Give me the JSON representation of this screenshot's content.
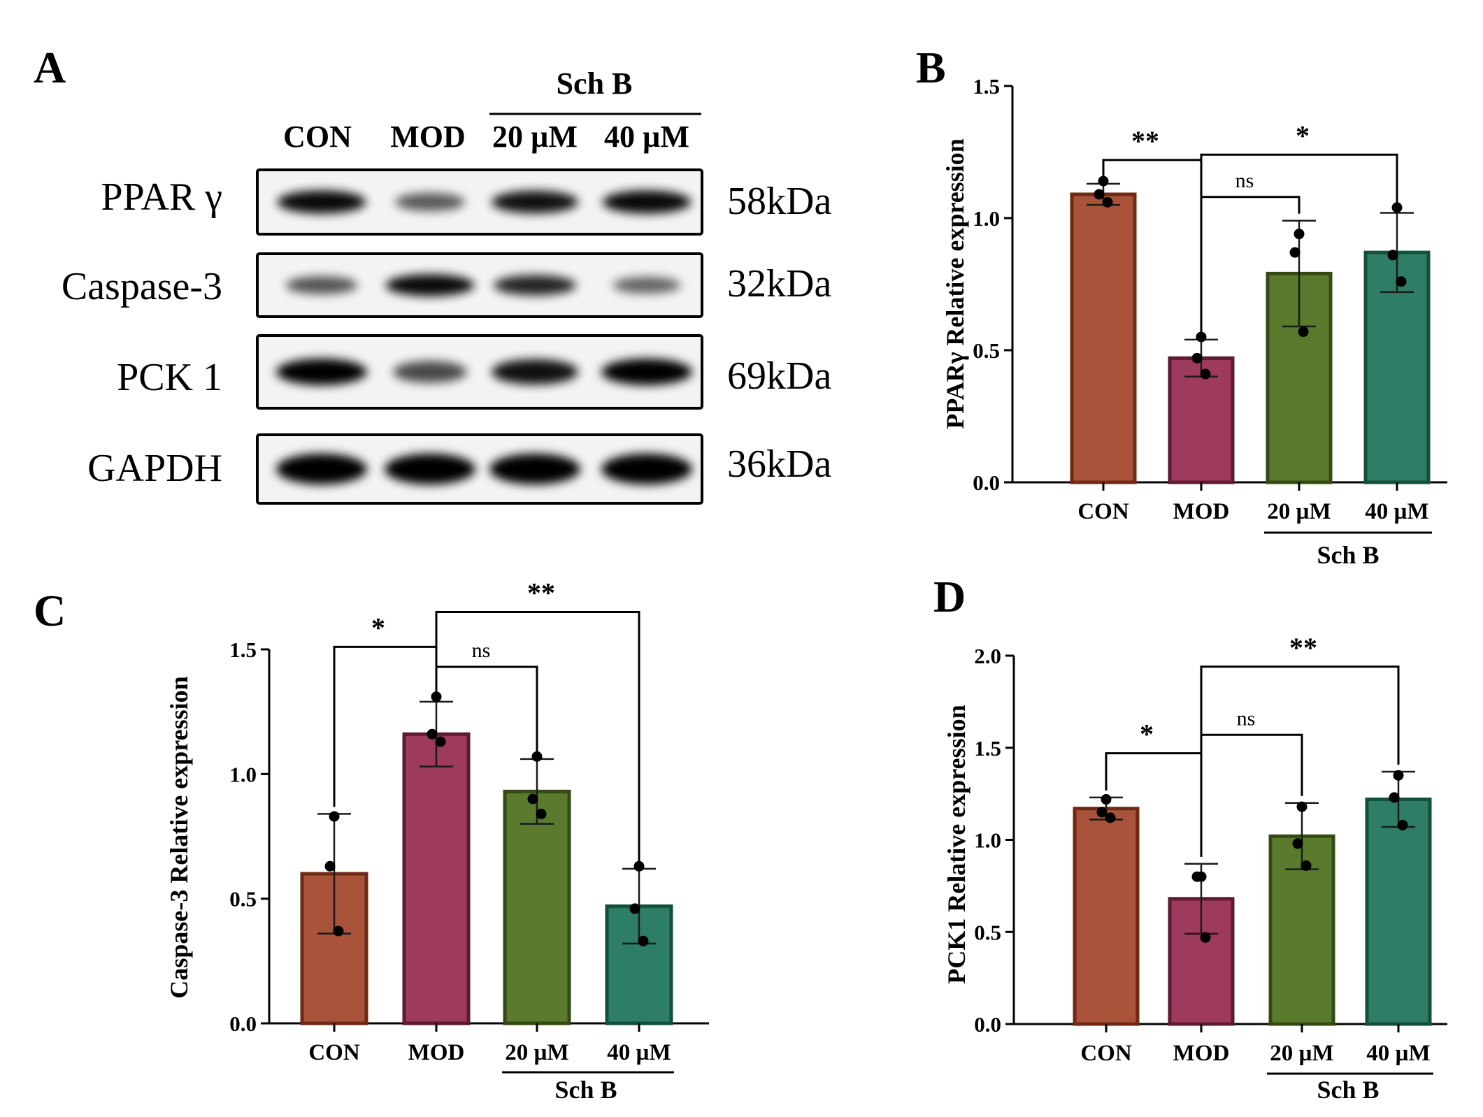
{
  "panels": {
    "A": {
      "letter": "A",
      "group_label": "Sch B",
      "lanes": [
        "CON",
        "MOD",
        "20 µM",
        "40 µM"
      ],
      "blots": [
        {
          "protein": "PPAR γ",
          "size": "58kDa",
          "intensity": [
            0.95,
            0.5,
            0.9,
            0.95
          ]
        },
        {
          "protein": "Caspase-3",
          "size": "32kDa",
          "intensity": [
            0.55,
            0.95,
            0.8,
            0.45
          ]
        },
        {
          "protein": "PCK 1",
          "size": "69kDa",
          "intensity": [
            1.0,
            0.6,
            0.9,
            1.0
          ]
        },
        {
          "protein": "GAPDH",
          "size": "36kDa",
          "intensity": [
            1.0,
            1.0,
            1.0,
            1.0
          ]
        }
      ]
    },
    "B": {
      "letter": "B"
    },
    "C": {
      "letter": "C"
    },
    "D": {
      "letter": "D"
    }
  },
  "colors": {
    "CON": "#a8533a",
    "MOD": "#9e3a5e",
    "20uM": "#5a7a2e",
    "40uM": "#2e7d66",
    "CON_edge": "#6e2a14",
    "MOD_edge": "#5e1a34",
    "20uM_edge": "#344a12",
    "40uM_edge": "#12503e"
  },
  "chart_data": [
    {
      "panel": "B",
      "type": "bar",
      "categories": [
        "CON",
        "MOD",
        "20 µM",
        "40 µM"
      ],
      "group_label": "Sch B",
      "ylabel": "PPARγ  Relative expression",
      "ylim": [
        0,
        1.5
      ],
      "yticks": [
        "0.0",
        "0.5",
        "1.0",
        "1.5"
      ],
      "values": [
        1.09,
        0.47,
        0.79,
        0.87
      ],
      "sd": [
        0.04,
        0.07,
        0.2,
        0.15
      ],
      "points": [
        [
          1.14,
          1.09,
          1.06
        ],
        [
          0.55,
          0.47,
          0.41
        ],
        [
          0.94,
          0.87,
          0.57
        ],
        [
          1.04,
          0.86,
          0.76
        ]
      ],
      "brackets": [
        {
          "from": 0,
          "to": 1,
          "label": "**",
          "level": 1.22
        },
        {
          "from": 1,
          "to": 2,
          "label": "ns",
          "level": 1.08
        },
        {
          "from": 1,
          "to": 3,
          "label": "*",
          "level": 1.24
        }
      ]
    },
    {
      "panel": "C",
      "type": "bar",
      "categories": [
        "CON",
        "MOD",
        "20 µM",
        "40 µM"
      ],
      "group_label": "Sch B",
      "ylabel": "Caspase-3 Relative expression",
      "ylim": [
        0,
        1.5
      ],
      "yticks": [
        "0.0",
        "0.5",
        "1.0",
        "1.5"
      ],
      "values": [
        0.6,
        1.16,
        0.93,
        0.47
      ],
      "sd": [
        0.24,
        0.13,
        0.13,
        0.15
      ],
      "points": [
        [
          0.83,
          0.63,
          0.37
        ],
        [
          1.31,
          1.16,
          1.13
        ],
        [
          1.07,
          0.9,
          0.84
        ],
        [
          0.63,
          0.46,
          0.33
        ]
      ],
      "brackets": [
        {
          "from": 0,
          "to": 1,
          "label": "*",
          "level": 1.51
        },
        {
          "from": 1,
          "to": 2,
          "label": "ns",
          "level": 1.43
        },
        {
          "from": 1,
          "to": 3,
          "label": "**",
          "level": 1.65
        }
      ]
    },
    {
      "panel": "D",
      "type": "bar",
      "categories": [
        "CON",
        "MOD",
        "20 µM",
        "40 µM"
      ],
      "group_label": "Sch B",
      "ylabel": "PCK1 Relative expression",
      "ylim": [
        0,
        2.0
      ],
      "yticks": [
        "0.0",
        "0.5",
        "1.0",
        "1.5",
        "2.0"
      ],
      "values": [
        1.17,
        0.68,
        1.02,
        1.22
      ],
      "sd": [
        0.06,
        0.19,
        0.18,
        0.15
      ],
      "points": [
        [
          1.22,
          1.15,
          1.12
        ],
        [
          0.8,
          0.8,
          0.47
        ],
        [
          1.18,
          0.98,
          0.86
        ],
        [
          1.35,
          1.23,
          1.08
        ]
      ],
      "brackets": [
        {
          "from": 0,
          "to": 1,
          "label": "*",
          "level": 1.47
        },
        {
          "from": 1,
          "to": 2,
          "label": "ns",
          "level": 1.57
        },
        {
          "from": 1,
          "to": 3,
          "label": "**",
          "level": 1.94
        }
      ]
    }
  ]
}
